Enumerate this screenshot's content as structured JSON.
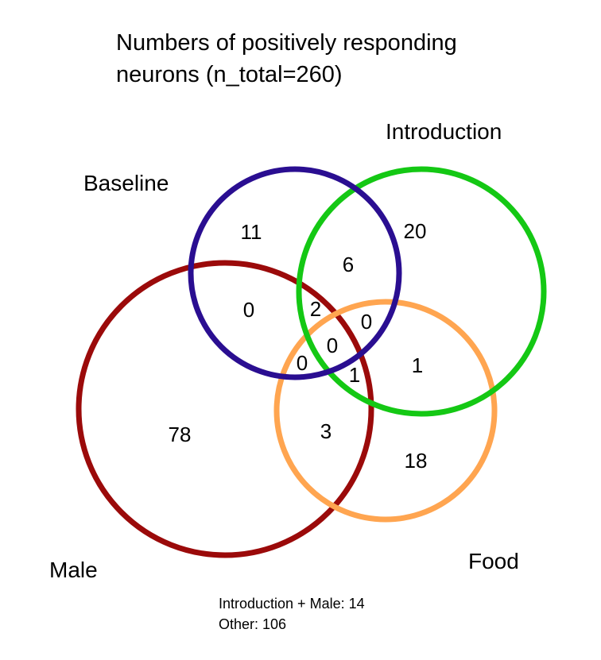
{
  "title": {
    "line1": "Numbers of positively responding",
    "line2": "neurons (n_total=260)"
  },
  "sets": {
    "baseline": {
      "label": "Baseline",
      "color": "#2a0e91"
    },
    "introduction": {
      "label": "Introduction",
      "color": "#14c814"
    },
    "male": {
      "label": "Male",
      "color": "#9b0a0a"
    },
    "food": {
      "label": "Food",
      "color": "#ffa550"
    }
  },
  "regions": {
    "baseline_only": "11",
    "introduction_only": "20",
    "baseline_introduction": "6",
    "baseline_male": "0",
    "baseline_introduction_male": "2",
    "baseline_introduction_food": "0",
    "all_four": "0",
    "baseline_male_food": "0",
    "introduction_male_food": "1",
    "introduction_food": "1",
    "male_only": "78",
    "male_food": "3",
    "food_only": "18"
  },
  "notes": {
    "introduction_male": "Introduction + Male: 14",
    "other": "Other: 106"
  }
}
